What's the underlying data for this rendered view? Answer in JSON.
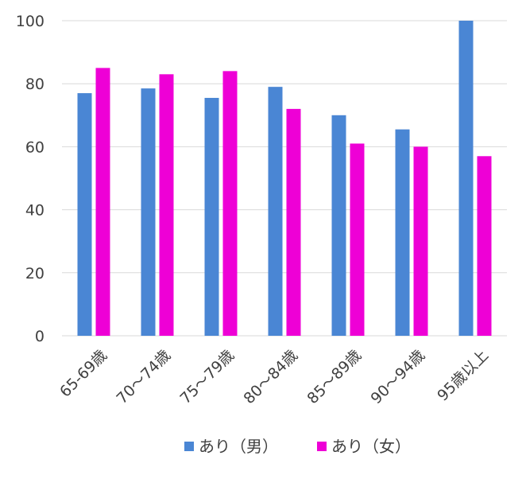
{
  "chart_data": {
    "type": "bar",
    "categories": [
      "65-69歳",
      "70～74歳",
      "75～79歳",
      "80～84歳",
      "85～89歳",
      "90～94歳",
      "95歳以上"
    ],
    "series": [
      {
        "name": "あり（男）",
        "color": "#4A86D4",
        "values": [
          77,
          78.5,
          75.5,
          79,
          70,
          65.5,
          100
        ]
      },
      {
        "name": "あり（女）",
        "color": "#EE00D6",
        "values": [
          85,
          83,
          84,
          72,
          61,
          60,
          57
        ]
      }
    ],
    "yticks": [
      "0",
      "20",
      "40",
      "60",
      "80",
      "100"
    ],
    "ylim": [
      0,
      100
    ],
    "grid": true,
    "legend": "bottom"
  }
}
